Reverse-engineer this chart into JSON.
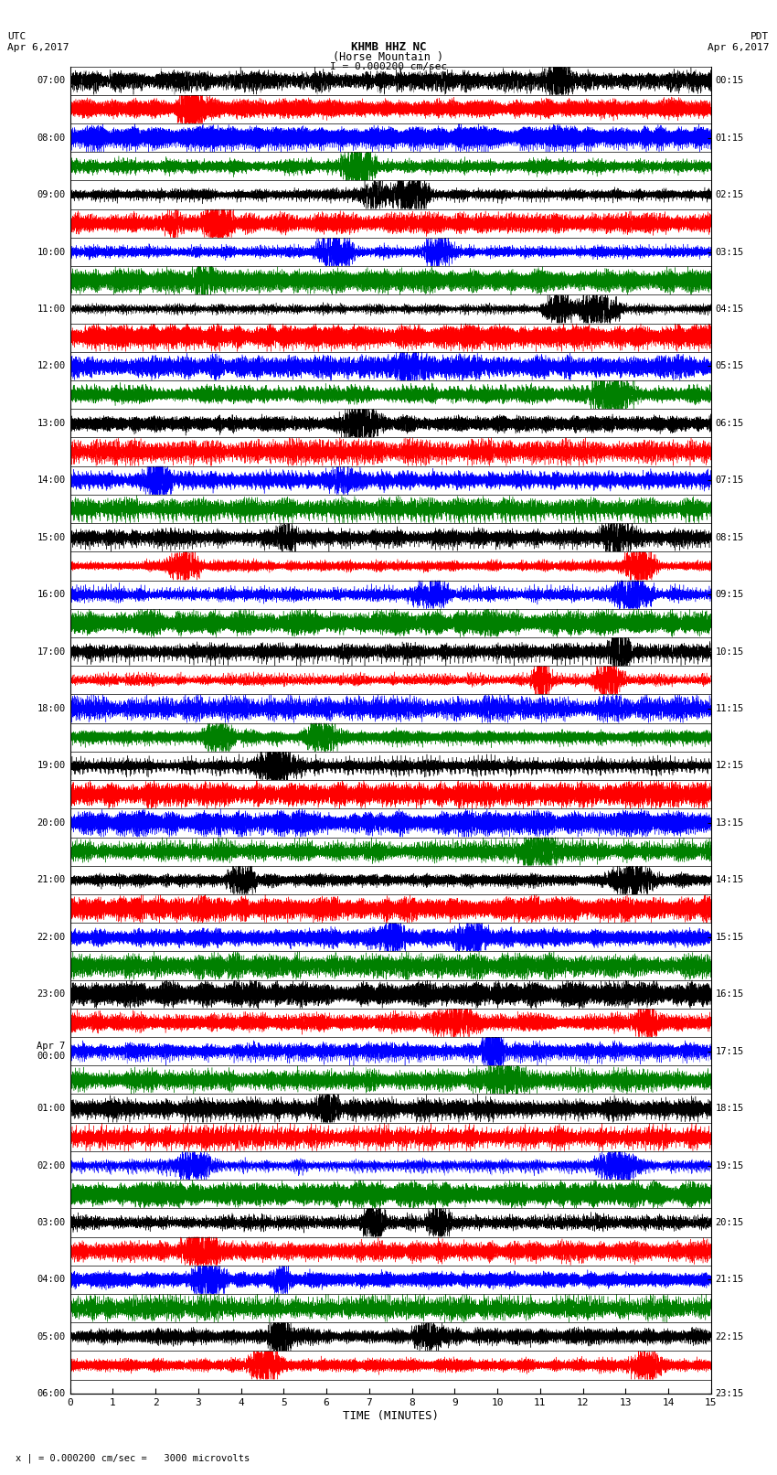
{
  "title_line1": "KHMB HHZ NC",
  "title_line2": "(Horse Mountain )",
  "scale_label": "I = 0.000200 cm/sec",
  "utc_label": "UTC",
  "utc_date": "Apr 6,2017",
  "pdt_label": "PDT",
  "pdt_date": "Apr 6,2017",
  "bottom_label": "TIME (MINUTES)",
  "bottom_note": "x | = 0.000200 cm/sec =   3000 microvolts",
  "left_times": [
    "07:00",
    "",
    "08:00",
    "",
    "09:00",
    "",
    "10:00",
    "",
    "11:00",
    "",
    "12:00",
    "",
    "13:00",
    "",
    "14:00",
    "",
    "15:00",
    "",
    "16:00",
    "",
    "17:00",
    "",
    "18:00",
    "",
    "19:00",
    "",
    "20:00",
    "",
    "21:00",
    "",
    "22:00",
    "",
    "23:00",
    "",
    "Apr 7\n00:00",
    "",
    "01:00",
    "",
    "02:00",
    "",
    "03:00",
    "",
    "04:00",
    "",
    "05:00",
    "",
    "06:00",
    ""
  ],
  "right_times": [
    "00:15",
    "",
    "01:15",
    "",
    "02:15",
    "",
    "03:15",
    "",
    "04:15",
    "",
    "05:15",
    "",
    "06:15",
    "",
    "07:15",
    "",
    "08:15",
    "",
    "09:15",
    "",
    "10:15",
    "",
    "11:15",
    "",
    "12:15",
    "",
    "13:15",
    "",
    "14:15",
    "",
    "15:15",
    "",
    "16:15",
    "",
    "17:15",
    "",
    "18:15",
    "",
    "19:15",
    "",
    "20:15",
    "",
    "21:15",
    "",
    "22:15",
    "",
    "23:15",
    ""
  ],
  "n_rows": 46,
  "n_points": 9000,
  "minute_ticks": [
    0,
    1,
    2,
    3,
    4,
    5,
    6,
    7,
    8,
    9,
    10,
    11,
    12,
    13,
    14,
    15
  ],
  "colors_cycle": [
    "black",
    "red",
    "blue",
    "green"
  ],
  "amplitude": 0.45,
  "background_color": "white",
  "figsize": [
    8.5,
    16.13
  ]
}
